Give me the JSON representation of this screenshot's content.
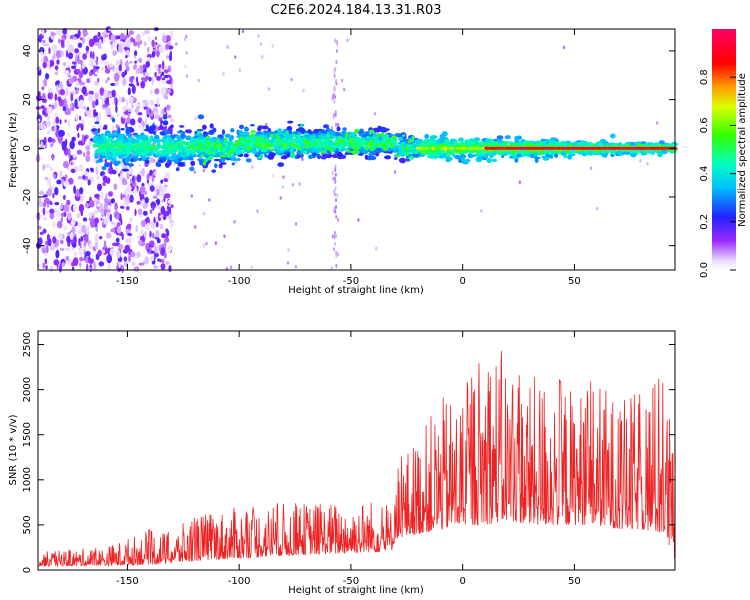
{
  "figure": {
    "title": "C2E6.2024.184.13.31.R03"
  },
  "chart_data": [
    {
      "type": "heatmap",
      "xlabel": "Height of straight line (km)",
      "ylabel": "Frequency (Hz)",
      "xlim": [
        -190,
        95
      ],
      "ylim": [
        -50,
        49
      ],
      "x_ticks": [
        -150,
        -100,
        -50,
        0,
        50
      ],
      "y_ticks": [
        -40,
        -20,
        0,
        20,
        40
      ],
      "colorbar": {
        "label": "Normalized spectral amplitude",
        "range": [
          0,
          1
        ],
        "ticks": [
          0.0,
          0.2,
          0.4,
          0.6,
          0.8
        ],
        "colormap": "rainbow (white-violet-blue-cyan-green-yellow-red-magenta)"
      },
      "features": {
        "noise_region_x": [
          -190,
          -130
        ],
        "signal_band_center_hz": 0,
        "signal_band_halfwidth_hz": [
          8,
          1.5
        ],
        "strong_tone_x": [
          -20,
          95
        ]
      }
    },
    {
      "type": "line",
      "xlabel": "Height of straight line (km)",
      "ylabel": "SNR (10 * v/v)",
      "xlim": [
        -190,
        95
      ],
      "ylim": [
        0,
        2650
      ],
      "x_ticks": [
        -150,
        -100,
        -50,
        0,
        50
      ],
      "y_ticks": [
        0,
        500,
        1000,
        1500,
        2000,
        2500
      ],
      "series": [
        {
          "color": "#ee2222",
          "envelope_x": [
            -190,
            -160,
            -140,
            -130,
            -120,
            -100,
            -80,
            -60,
            -40,
            -32,
            -30,
            -20,
            -10,
            0,
            10,
            20,
            30,
            40,
            50,
            60,
            70,
            80,
            90,
            95
          ],
          "envelope_peak": [
            200,
            260,
            450,
            420,
            620,
            700,
            750,
            760,
            800,
            700,
            1200,
            1500,
            1900,
            2000,
            2600,
            2400,
            2100,
            2300,
            2000,
            2150,
            1900,
            2000,
            2300,
            1300
          ],
          "envelope_base": [
            40,
            50,
            60,
            80,
            100,
            130,
            160,
            180,
            200,
            200,
            350,
            400,
            450,
            500,
            500,
            550,
            500,
            500,
            500,
            500,
            450,
            450,
            400,
            100
          ]
        }
      ]
    }
  ]
}
